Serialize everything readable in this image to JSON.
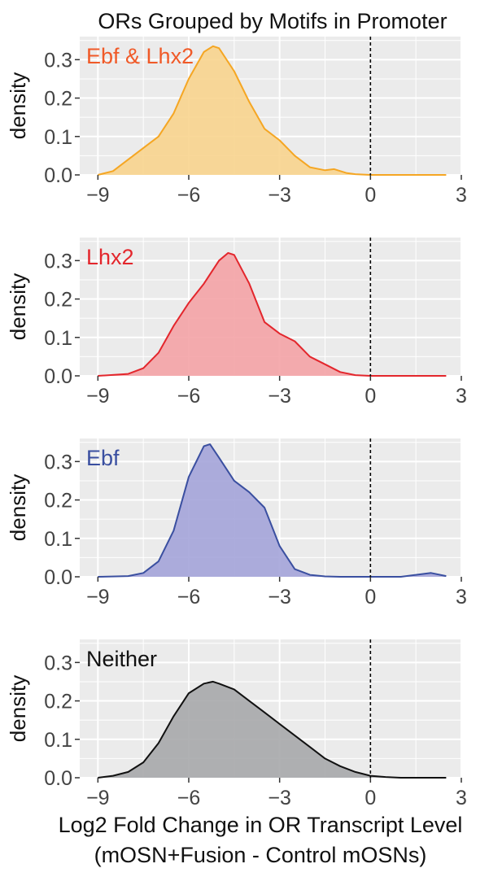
{
  "chart_data": {
    "type": "area",
    "title": "ORs Grouped by Motifs in Promoter",
    "xlabel_line1": "Log2 Fold Change in OR Transcript Level",
    "xlabel_line2": "(mOSN+Fusion - Control mOSNs)",
    "ylabel": "density",
    "xlim": [
      -9.6,
      3
    ],
    "ylim": [
      0,
      0.36
    ],
    "x_ticks": [
      -9,
      -6,
      -3,
      0,
      3
    ],
    "x_tick_labels": [
      "−9",
      "−6",
      "−3",
      "0",
      "3"
    ],
    "y_ticks": [
      0.0,
      0.1,
      0.2,
      0.3
    ],
    "y_tick_labels": [
      "0.0",
      "0.1",
      "0.2",
      "0.3"
    ],
    "reference_line_x": 0,
    "grid": true,
    "panels": [
      {
        "label": "Ebf & Lhx2",
        "line_color": "#F5A623",
        "fill_color": "#F8D48E",
        "label_color": "#F05A28",
        "x": [
          -9,
          -8.5,
          -8,
          -7.5,
          -7,
          -6.5,
          -6,
          -5.5,
          -5.2,
          -5,
          -4.5,
          -4,
          -3.5,
          -3,
          -2.5,
          -2,
          -1.5,
          -1.2,
          -0.8,
          -0.5,
          0,
          1,
          2.5
        ],
        "y": [
          0.0,
          0.01,
          0.04,
          0.07,
          0.1,
          0.16,
          0.25,
          0.32,
          0.335,
          0.33,
          0.27,
          0.19,
          0.12,
          0.09,
          0.05,
          0.02,
          0.012,
          0.015,
          0.005,
          0.002,
          0.0,
          0.0,
          0.0
        ]
      },
      {
        "label": "Lhx2",
        "line_color": "#E3262C",
        "fill_color": "#F4A3A6",
        "label_color": "#E3262C",
        "x": [
          -9,
          -8,
          -7.5,
          -7,
          -6.5,
          -6,
          -5.5,
          -5,
          -4.7,
          -4.5,
          -4,
          -3.5,
          -3,
          -2.5,
          -2,
          -1.5,
          -1,
          -0.5,
          0,
          1,
          2.5
        ],
        "y": [
          0.0,
          0.005,
          0.02,
          0.06,
          0.13,
          0.19,
          0.24,
          0.3,
          0.32,
          0.315,
          0.24,
          0.14,
          0.11,
          0.09,
          0.05,
          0.03,
          0.01,
          0.002,
          0.0,
          0.0,
          0.0
        ]
      },
      {
        "label": "Ebf",
        "line_color": "#3A4FA0",
        "fill_color": "#A4A4D9",
        "label_color": "#3A4FA0",
        "x": [
          -9,
          -8,
          -7.5,
          -7,
          -6.5,
          -6,
          -5.5,
          -5.3,
          -5,
          -4.5,
          -4,
          -3.5,
          -3,
          -2.5,
          -2,
          -1.5,
          -1,
          -0.5,
          0,
          1,
          1.5,
          2,
          2.5
        ],
        "y": [
          0.0,
          0.002,
          0.01,
          0.04,
          0.12,
          0.26,
          0.34,
          0.345,
          0.31,
          0.25,
          0.22,
          0.18,
          0.08,
          0.02,
          0.005,
          0.001,
          0.0,
          0.0,
          0.0,
          0.0,
          0.005,
          0.01,
          0.002
        ]
      },
      {
        "label": "Neither",
        "line_color": "#111111",
        "fill_color": "#A7A8AB",
        "label_color": "#111111",
        "x": [
          -9,
          -8.5,
          -8,
          -7.5,
          -7,
          -6.5,
          -6,
          -5.5,
          -5.2,
          -5,
          -4.5,
          -4,
          -3.5,
          -3,
          -2.5,
          -2,
          -1.5,
          -1,
          -0.5,
          0,
          0.5,
          1,
          2.5
        ],
        "y": [
          0.0,
          0.005,
          0.015,
          0.04,
          0.09,
          0.16,
          0.22,
          0.245,
          0.25,
          0.245,
          0.23,
          0.2,
          0.17,
          0.14,
          0.11,
          0.08,
          0.05,
          0.03,
          0.015,
          0.005,
          0.002,
          0.0,
          0.0
        ]
      }
    ]
  }
}
